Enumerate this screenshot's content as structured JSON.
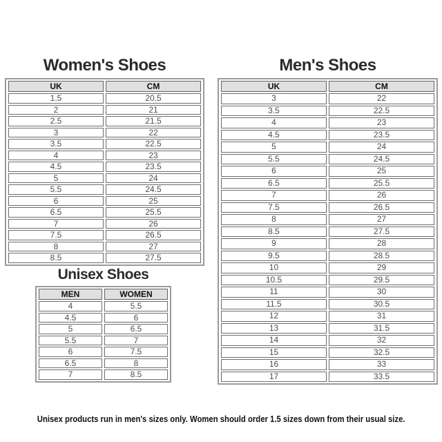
{
  "tables": {
    "womens": {
      "title": "Women's Shoes",
      "headers": [
        "UK",
        "CM"
      ],
      "rows": [
        [
          "1.5",
          "20.5"
        ],
        [
          "2",
          "21"
        ],
        [
          "2.5",
          "21.5"
        ],
        [
          "3",
          "22"
        ],
        [
          "3.5",
          "22.5"
        ],
        [
          "4",
          "23"
        ],
        [
          "4.5",
          "23.5"
        ],
        [
          "5",
          "24"
        ],
        [
          "5.5",
          "24.5"
        ],
        [
          "6",
          "25"
        ],
        [
          "6.5",
          "25.5"
        ],
        [
          "7",
          "26"
        ],
        [
          "7.5",
          "26.5"
        ],
        [
          "8",
          "27"
        ],
        [
          "8.5",
          "27.5"
        ]
      ]
    },
    "mens": {
      "title": "Men's Shoes",
      "headers": [
        "UK",
        "CM"
      ],
      "rows": [
        [
          "3",
          "22"
        ],
        [
          "3.5",
          "22.5"
        ],
        [
          "4",
          "23"
        ],
        [
          "4.5",
          "23.5"
        ],
        [
          "5",
          "24"
        ],
        [
          "5.5",
          "24.5"
        ],
        [
          "6",
          "25"
        ],
        [
          "6.5",
          "25.5"
        ],
        [
          "7",
          "26"
        ],
        [
          "7.5",
          "26.5"
        ],
        [
          "8",
          "27"
        ],
        [
          "8.5",
          "27.5"
        ],
        [
          "9",
          "28"
        ],
        [
          "9.5",
          "28.5"
        ],
        [
          "10",
          "29"
        ],
        [
          "10.5",
          "29.5"
        ],
        [
          "11",
          "30"
        ],
        [
          "11.5",
          "30.5"
        ],
        [
          "12",
          "31"
        ],
        [
          "13",
          "31.5"
        ],
        [
          "14",
          "32"
        ],
        [
          "15",
          "32.5"
        ],
        [
          "16",
          "33"
        ],
        [
          "17",
          "33.5"
        ]
      ]
    },
    "unisex": {
      "title": "Unisex Shoes",
      "headers": [
        "MEN",
        "WOMEN"
      ],
      "rows": [
        [
          "4",
          "5.5"
        ],
        [
          "4.5",
          "6"
        ],
        [
          "5",
          "6.5"
        ],
        [
          "5.5",
          "7"
        ],
        [
          "6",
          "7.5"
        ],
        [
          "6.5",
          "8"
        ],
        [
          "7",
          "8.5"
        ]
      ]
    }
  },
  "footer": {
    "note": "Unisex products run in men's sizes only. Women should order 1.5 sizes down from their usual size."
  },
  "colors": {
    "header_bg": "#e0e0e0",
    "cell_text": "#4d4d4d",
    "title_text": "#2b2b2b",
    "outer_border": "#9a9a9a",
    "inner_border": "#6b6b6b"
  }
}
